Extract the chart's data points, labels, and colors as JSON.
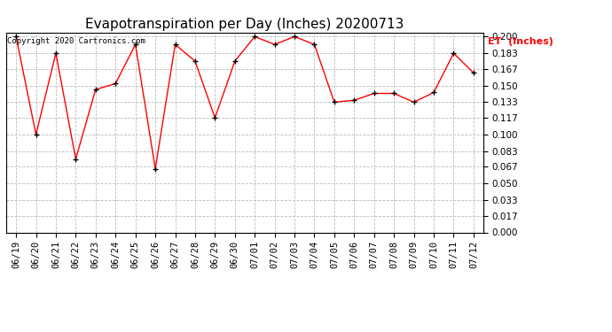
{
  "title": "Evapotranspiration per Day (Inches) 20200713",
  "copyright_text": "Copyright 2020 Cartronics.com",
  "legend_label": "ET  (Inches)",
  "dates": [
    "06/19",
    "06/20",
    "06/21",
    "06/22",
    "06/23",
    "06/24",
    "06/25",
    "06/26",
    "06/27",
    "06/28",
    "06/29",
    "06/30",
    "07/01",
    "07/02",
    "07/03",
    "07/04",
    "07/05",
    "07/06",
    "07/07",
    "07/08",
    "07/09",
    "07/10",
    "07/11",
    "07/12"
  ],
  "values": [
    0.2,
    0.1,
    0.183,
    0.075,
    0.146,
    0.152,
    0.192,
    0.065,
    0.192,
    0.175,
    0.117,
    0.175,
    0.2,
    0.192,
    0.2,
    0.192,
    0.133,
    0.135,
    0.142,
    0.142,
    0.133,
    0.143,
    0.183,
    0.163
  ],
  "ylim": [
    0.0,
    0.2035
  ],
  "yticks": [
    0.0,
    0.017,
    0.033,
    0.05,
    0.067,
    0.083,
    0.1,
    0.117,
    0.133,
    0.15,
    0.167,
    0.183,
    0.2
  ],
  "line_color": "red",
  "marker": "+",
  "marker_color": "black",
  "bg_color": "white",
  "grid_color": "#bbbbbb",
  "title_fontsize": 11,
  "tick_fontsize": 7.5,
  "legend_color": "red",
  "copyright_fontsize": 6.5
}
